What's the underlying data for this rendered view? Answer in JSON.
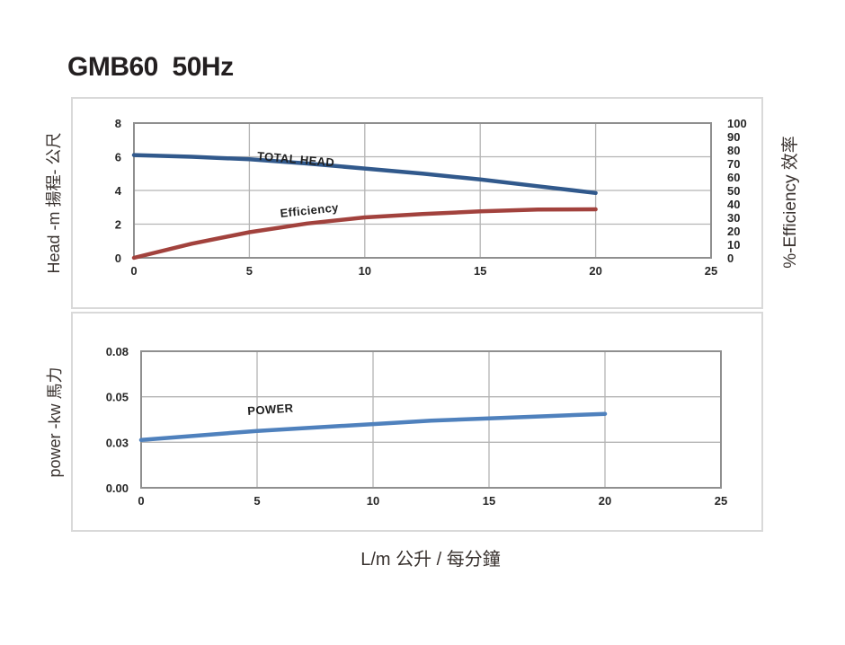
{
  "page": {
    "title": "GMB60  50Hz"
  },
  "colors": {
    "total_head_line": "#31598c",
    "efficiency_line": "#a2423d",
    "power_line": "#4f81bd",
    "gridline": "#b4b4b4",
    "plot_border": "#8f8f8f",
    "panel_border": "#d9d9d9",
    "text": "#262626"
  },
  "chart_data": [
    {
      "type": "line",
      "title": "Head / Efficiency vs Flow",
      "grid": true,
      "x_axis": {
        "min": 0,
        "max": 25,
        "ticks": [
          {
            "v": 0,
            "label": "0"
          },
          {
            "v": 5,
            "label": "5"
          },
          {
            "v": 10,
            "label": "10"
          },
          {
            "v": 15,
            "label": "15"
          },
          {
            "v": 20,
            "label": "20"
          },
          {
            "v": 25,
            "label": "25"
          }
        ]
      },
      "y_left": {
        "title": "Head -m  揚程- 公尺",
        "min": 0,
        "max": 8,
        "ticks": [
          {
            "v": 0,
            "label": "0"
          },
          {
            "v": 2,
            "label": "2"
          },
          {
            "v": 4,
            "label": "4"
          },
          {
            "v": 6,
            "label": "6"
          },
          {
            "v": 8,
            "label": "8"
          }
        ]
      },
      "y_right": {
        "title": "%-Efficiency 效率",
        "min": 0,
        "max": 100,
        "ticks": [
          {
            "v": 0,
            "label": "0"
          },
          {
            "v": 10,
            "label": "10"
          },
          {
            "v": 20,
            "label": "20"
          },
          {
            "v": 30,
            "label": "30"
          },
          {
            "v": 40,
            "label": "40"
          },
          {
            "v": 50,
            "label": "50"
          },
          {
            "v": 60,
            "label": "60"
          },
          {
            "v": 70,
            "label": "70"
          },
          {
            "v": 80,
            "label": "80"
          },
          {
            "v": 90,
            "label": "90"
          },
          {
            "v": 100,
            "label": "100"
          }
        ]
      },
      "series": [
        {
          "name": "TOTAL HEAD",
          "axis": "left",
          "color": "#31598c",
          "points": [
            [
              0,
              6.1
            ],
            [
              2.5,
              6.0
            ],
            [
              5,
              5.85
            ],
            [
              7.5,
              5.6
            ],
            [
              10,
              5.3
            ],
            [
              12.5,
              5.0
            ],
            [
              15,
              4.65
            ],
            [
              17.5,
              4.25
            ],
            [
              20,
              3.85
            ]
          ]
        },
        {
          "name": "Efficiency",
          "axis": "right",
          "color": "#a2423d",
          "points": [
            [
              0,
              0
            ],
            [
              2.5,
              10.5
            ],
            [
              5,
              19
            ],
            [
              7.5,
              25.5
            ],
            [
              10,
              30
            ],
            [
              12.5,
              32.5
            ],
            [
              15,
              34.5
            ],
            [
              17.5,
              35.8
            ],
            [
              20,
              36
            ]
          ]
        }
      ],
      "annotations": [
        {
          "text": "TOTAL HEAD",
          "fx": 0.213,
          "fy": 0.273,
          "rotate": 5
        },
        {
          "text": "Efficiency",
          "fx": 0.254,
          "fy": 0.7,
          "rotate": -6
        }
      ]
    },
    {
      "type": "line",
      "title": "Power vs Flow",
      "grid": true,
      "x_axis": {
        "min": 0,
        "max": 25,
        "title": "L/m    公升 / 每分鐘",
        "ticks": [
          {
            "v": 0,
            "label": "0"
          },
          {
            "v": 5,
            "label": "5"
          },
          {
            "v": 10,
            "label": "10"
          },
          {
            "v": 15,
            "label": "15"
          },
          {
            "v": 20,
            "label": "20"
          },
          {
            "v": 25,
            "label": "25"
          }
        ]
      },
      "y_left": {
        "title": "power -kw 馬力",
        "min": 0,
        "max": 0.08,
        "ticks": [
          {
            "v": 0,
            "label": "0.00"
          },
          {
            "v": 0.03,
            "label": "0.03"
          },
          {
            "v": 0.05,
            "label": "0.05"
          },
          {
            "v": 0.08,
            "label": "0.08"
          }
        ]
      },
      "series": [
        {
          "name": "POWER",
          "axis": "left",
          "color": "#4f81bd",
          "points": [
            [
              0,
              0.031
            ],
            [
              2.5,
              0.033
            ],
            [
              5,
              0.035
            ],
            [
              7.5,
              0.0365
            ],
            [
              10,
              0.038
            ],
            [
              12.5,
              0.0395
            ],
            [
              15,
              0.0405
            ],
            [
              17.5,
              0.0415
            ],
            [
              20,
              0.0425
            ]
          ]
        }
      ],
      "annotations": [
        {
          "text": "POWER",
          "fx": 0.184,
          "fy": 0.467,
          "rotate": -4
        }
      ]
    }
  ]
}
